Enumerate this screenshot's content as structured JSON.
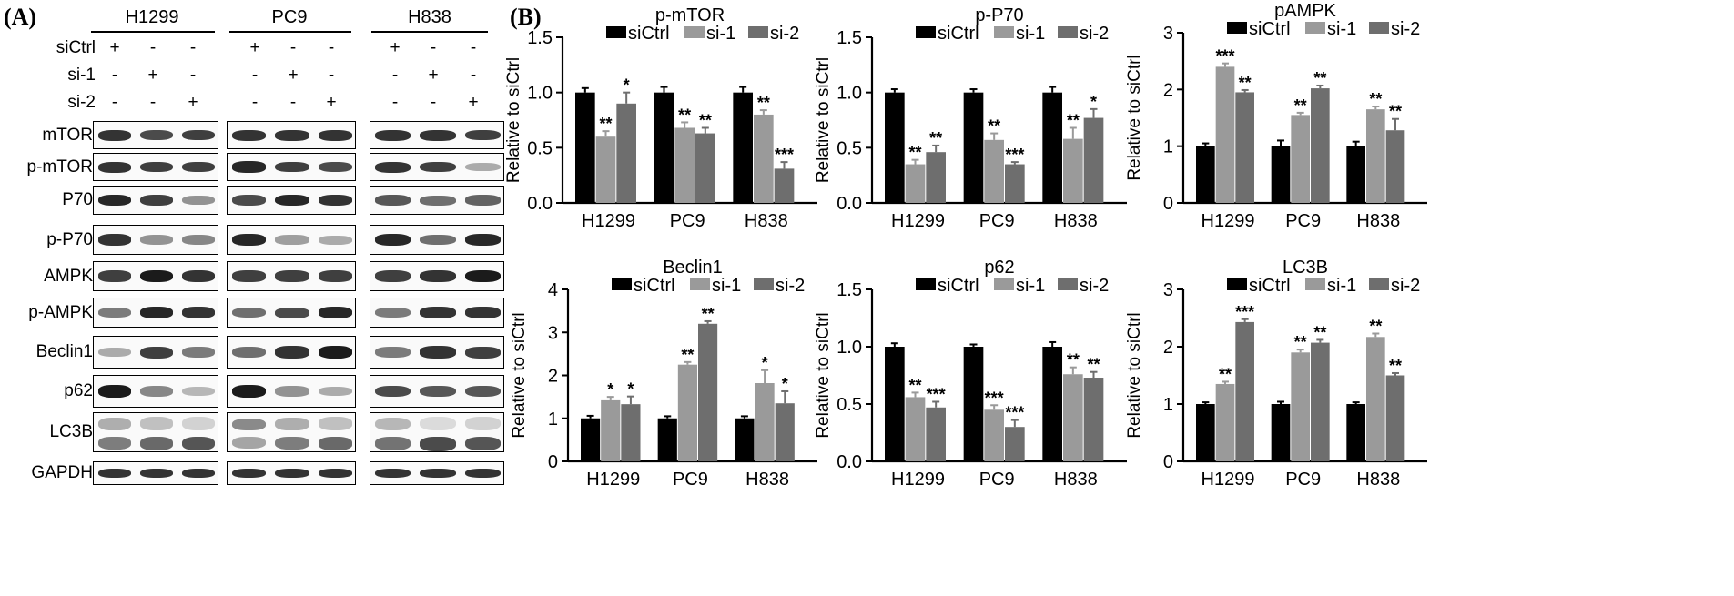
{
  "panel_a": {
    "letter": "(A)",
    "cell_lines": [
      "H1299",
      "PC9",
      "H838"
    ],
    "conditions": [
      {
        "label": "siCtrl",
        "signs": [
          "+",
          "-",
          "-"
        ]
      },
      {
        "label": "si-1",
        "signs": [
          "-",
          "+",
          "-"
        ]
      },
      {
        "label": "si-2",
        "signs": [
          "-",
          "-",
          "+"
        ]
      }
    ],
    "proteins": [
      "mTOR",
      "p-mTOR",
      "P70",
      "p-P70",
      "AMPK",
      "p-AMPK",
      "Beclin1",
      "p62",
      "LC3B",
      "GAPDH"
    ]
  },
  "panel_b": {
    "letter": "(B)",
    "legend": [
      "siCtrl",
      "si-1",
      "si-2"
    ],
    "colors": {
      "siCtrl": "#000000",
      "si-1": "#9a9a9a",
      "si-2": "#6e6e6e"
    },
    "ylabel": "Relative to siCtrl"
  },
  "chart_data": [
    {
      "type": "bar",
      "title": "p-mTOR",
      "ylabel": "Relative to siCtrl",
      "categories": [
        "H1299",
        "PC9",
        "H838"
      ],
      "ylim": [
        0,
        1.5
      ],
      "yticks": [
        "0.0",
        "0.5",
        "1.0",
        "1.5"
      ],
      "series": [
        {
          "name": "siCtrl",
          "values": [
            1.0,
            1.0,
            1.0
          ],
          "errors": [
            0.04,
            0.05,
            0.05
          ],
          "marks": [
            "",
            "",
            ""
          ]
        },
        {
          "name": "si-1",
          "values": [
            0.6,
            0.68,
            0.8
          ],
          "errors": [
            0.05,
            0.05,
            0.04
          ],
          "marks": [
            "**",
            "**",
            "**"
          ]
        },
        {
          "name": "si-2",
          "values": [
            0.9,
            0.63,
            0.31
          ],
          "errors": [
            0.1,
            0.05,
            0.06
          ],
          "marks": [
            "*",
            "**",
            "***"
          ]
        }
      ]
    },
    {
      "type": "bar",
      "title": "p-P70",
      "ylabel": "Relative to siCtrl",
      "categories": [
        "H1299",
        "PC9",
        "H838"
      ],
      "ylim": [
        0,
        1.5
      ],
      "yticks": [
        "0.0",
        "0.5",
        "1.0",
        "1.5"
      ],
      "series": [
        {
          "name": "siCtrl",
          "values": [
            1.0,
            1.0,
            1.0
          ],
          "errors": [
            0.03,
            0.03,
            0.05
          ],
          "marks": [
            "",
            "",
            ""
          ]
        },
        {
          "name": "si-1",
          "values": [
            0.35,
            0.57,
            0.58
          ],
          "errors": [
            0.04,
            0.06,
            0.1
          ],
          "marks": [
            "**",
            "**",
            "**"
          ]
        },
        {
          "name": "si-2",
          "values": [
            0.46,
            0.35,
            0.77
          ],
          "errors": [
            0.06,
            0.02,
            0.08
          ],
          "marks": [
            "**",
            "***",
            "*"
          ]
        }
      ]
    },
    {
      "type": "bar",
      "title": "pAMPK",
      "ylabel": "Relative to siCtrl",
      "categories": [
        "H1299",
        "PC9",
        "H838"
      ],
      "ylim": [
        0,
        3
      ],
      "yticks": [
        "0",
        "1",
        "2",
        "3"
      ],
      "series": [
        {
          "name": "siCtrl",
          "values": [
            1.0,
            1.0,
            1.0
          ],
          "errors": [
            0.05,
            0.1,
            0.08
          ],
          "marks": [
            "",
            "",
            ""
          ]
        },
        {
          "name": "si-1",
          "values": [
            2.4,
            1.55,
            1.65
          ],
          "errors": [
            0.06,
            0.04,
            0.05
          ],
          "marks": [
            "***",
            "**",
            "**"
          ]
        },
        {
          "name": "si-2",
          "values": [
            1.95,
            2.02,
            1.28
          ],
          "errors": [
            0.04,
            0.05,
            0.2
          ],
          "marks": [
            "**",
            "**",
            "**"
          ]
        }
      ]
    },
    {
      "type": "bar",
      "title": "Beclin1",
      "ylabel": "Relative to siCtrl",
      "categories": [
        "H1299",
        "PC9",
        "H838"
      ],
      "ylim": [
        0,
        4
      ],
      "yticks": [
        "0",
        "1",
        "2",
        "3",
        "4"
      ],
      "series": [
        {
          "name": "siCtrl",
          "values": [
            1.0,
            1.0,
            1.0
          ],
          "errors": [
            0.06,
            0.05,
            0.05
          ],
          "marks": [
            "",
            "",
            ""
          ]
        },
        {
          "name": "si-1",
          "values": [
            1.42,
            2.25,
            1.82
          ],
          "errors": [
            0.08,
            0.06,
            0.3
          ],
          "marks": [
            "*",
            "**",
            "*"
          ]
        },
        {
          "name": "si-2",
          "values": [
            1.33,
            3.2,
            1.35
          ],
          "errors": [
            0.18,
            0.06,
            0.28
          ],
          "marks": [
            "*",
            "**",
            "*"
          ]
        }
      ]
    },
    {
      "type": "bar",
      "title": "p62",
      "ylabel": "Relative to siCtrl",
      "categories": [
        "H1299",
        "PC9",
        "H838"
      ],
      "ylim": [
        0,
        1.5
      ],
      "yticks": [
        "0.0",
        "0.5",
        "1.0",
        "1.5"
      ],
      "series": [
        {
          "name": "siCtrl",
          "values": [
            1.0,
            1.0,
            1.0
          ],
          "errors": [
            0.03,
            0.02,
            0.04
          ],
          "marks": [
            "",
            "",
            ""
          ]
        },
        {
          "name": "si-1",
          "values": [
            0.56,
            0.45,
            0.76
          ],
          "errors": [
            0.04,
            0.04,
            0.06
          ],
          "marks": [
            "**",
            "***",
            "**"
          ]
        },
        {
          "name": "si-2",
          "values": [
            0.47,
            0.3,
            0.73
          ],
          "errors": [
            0.05,
            0.06,
            0.05
          ],
          "marks": [
            "***",
            "***",
            "**"
          ]
        }
      ]
    },
    {
      "type": "bar",
      "title": "LC3B",
      "ylabel": "Relative to siCtrl",
      "categories": [
        "H1299",
        "PC9",
        "H838"
      ],
      "ylim": [
        0,
        3
      ],
      "yticks": [
        "0",
        "1",
        "2",
        "3"
      ],
      "series": [
        {
          "name": "siCtrl",
          "values": [
            1.0,
            1.0,
            1.0
          ],
          "errors": [
            0.03,
            0.04,
            0.03
          ],
          "marks": [
            "",
            "",
            ""
          ]
        },
        {
          "name": "si-1",
          "values": [
            1.35,
            1.9,
            2.17
          ],
          "errors": [
            0.04,
            0.05,
            0.06
          ],
          "marks": [
            "**",
            "**",
            "**"
          ]
        },
        {
          "name": "si-2",
          "values": [
            2.43,
            2.07,
            1.5
          ],
          "errors": [
            0.05,
            0.05,
            0.04
          ],
          "marks": [
            "***",
            "**",
            "**"
          ]
        }
      ]
    }
  ]
}
